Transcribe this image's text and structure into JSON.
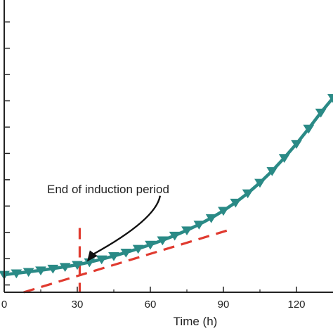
{
  "chart_data": {
    "type": "line",
    "xlabel": "Time (h)",
    "ylabel": "",
    "xlim": [
      0,
      135
    ],
    "ylim": [
      0,
      1
    ],
    "x_ticks": [
      0,
      30,
      60,
      90,
      120
    ],
    "x_tick_labels": [
      "0",
      "30",
      "60",
      "90",
      "120"
    ],
    "y_ticks": [
      0.025,
      0.115,
      0.205,
      0.295,
      0.385,
      0.475,
      0.565,
      0.655,
      0.745,
      0.835,
      0.925
    ],
    "grid": false,
    "legend": "none",
    "series": [
      {
        "color": "#2a8a86",
        "marker": "triangle-down",
        "x": [
          0,
          5,
          10,
          15,
          20,
          25,
          30,
          35,
          40,
          45,
          50,
          55,
          60,
          65,
          70,
          75,
          80,
          85,
          90,
          95,
          100,
          105,
          110,
          115,
          120,
          125,
          130,
          135
        ],
        "y": [
          0.06,
          0.065,
          0.07,
          0.075,
          0.081,
          0.087,
          0.094,
          0.103,
          0.113,
          0.124,
          0.136,
          0.149,
          0.163,
          0.178,
          0.194,
          0.212,
          0.232,
          0.254,
          0.279,
          0.307,
          0.339,
          0.375,
          0.415,
          0.46,
          0.508,
          0.56,
          0.615,
          0.665
        ]
      }
    ],
    "reference_lines": [
      {
        "kind": "fit-line",
        "color": "#e03a2f",
        "style": "dashed",
        "x": [
          8,
          93
        ],
        "y": [
          0.0,
          0.215
        ]
      },
      {
        "kind": "vertical",
        "color": "#e03a2f",
        "style": "dashed",
        "x": [
          31,
          31
        ],
        "y": [
          0.22,
          0.0
        ]
      }
    ],
    "annotations": [
      {
        "text": "End of induction period",
        "arrow_to_x": 34,
        "arrow_to_y": 0.105
      }
    ]
  }
}
